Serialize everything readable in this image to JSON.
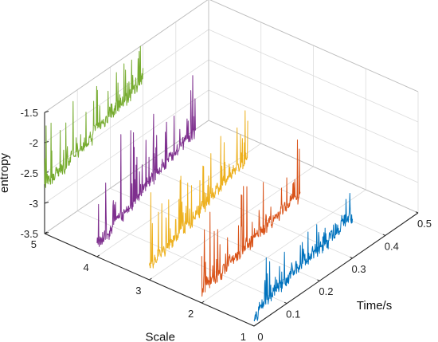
{
  "chart_data": {
    "type": "line",
    "view": "3d-waterfall",
    "title": "",
    "xlabel": "Time/s",
    "ylabel": "Scale",
    "zlabel": "entropy",
    "xlim": [
      0,
      0.5
    ],
    "ylim": [
      1,
      5
    ],
    "zlim": [
      -3.5,
      -1.5
    ],
    "xticks": [
      "0",
      "0.1",
      "0.2",
      "0.3",
      "0.4",
      "0.5"
    ],
    "yticks": [
      "1",
      "2",
      "3",
      "4",
      "5"
    ],
    "zticks": [
      "-3.5",
      "-3",
      "-2.5",
      "-2",
      "-1.5"
    ],
    "grid": true,
    "legend": "none",
    "series": [
      {
        "scale": 1,
        "color": "#0072BD",
        "t_range": [
          0.0,
          0.3
        ],
        "baseline_start": -3.3,
        "baseline_end": -2.8,
        "peak": -2.4
      },
      {
        "scale": 2,
        "color": "#D95319",
        "t_range": [
          0.0,
          0.3
        ],
        "baseline_start": -3.3,
        "baseline_end": -2.8,
        "peak": -1.9
      },
      {
        "scale": 3,
        "color": "#EDB120",
        "t_range": [
          0.0,
          0.3
        ],
        "baseline_start": -3.3,
        "baseline_end": -2.6,
        "peak": -1.8
      },
      {
        "scale": 4,
        "color": "#7E2F8E",
        "t_range": [
          0.0,
          0.3
        ],
        "baseline_start": -3.3,
        "baseline_end": -2.5,
        "peak": -1.6
      },
      {
        "scale": 5,
        "color": "#77AC30",
        "t_range": [
          0.0,
          0.3
        ],
        "baseline_start": -2.7,
        "baseline_end": -2.1,
        "peak": -1.5
      }
    ]
  }
}
